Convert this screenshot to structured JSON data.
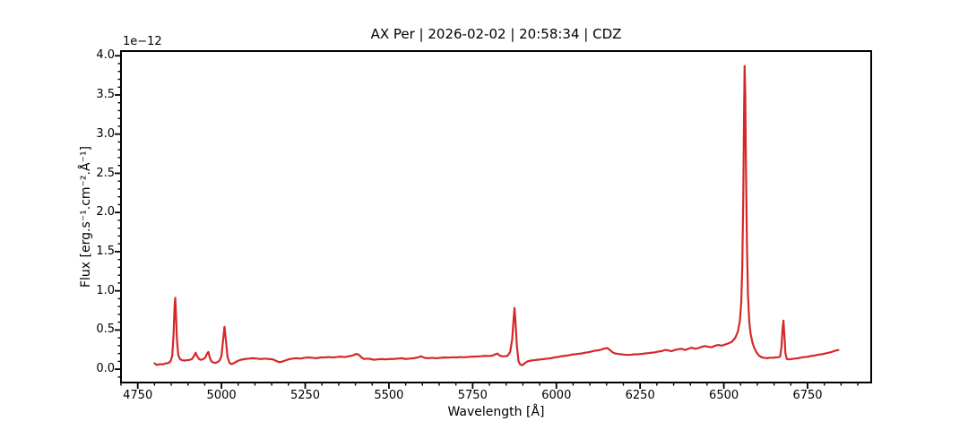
{
  "chart_data": {
    "type": "line",
    "title": "AX Per | 2026-02-02 | 20:58:34 | CDZ",
    "xlabel": "Wavelength [Å]",
    "ylabel": "Flux [erg.s⁻¹.cm⁻².Å⁻¹]",
    "y_offset_label": "1e−12",
    "flux_unit_scale": "1e-12",
    "line_color": "#d62728",
    "axes_color": "#000000",
    "background_color": "#ffffff",
    "grid": false,
    "legend": false,
    "xlim": [
      4700,
      6940
    ],
    "ylim": [
      -0.17,
      4.06
    ],
    "x_major_ticks": [
      4750,
      5000,
      5250,
      5500,
      5750,
      6000,
      6250,
      6500,
      6750
    ],
    "x_tick_labels": [
      "4750",
      "5000",
      "5250",
      "5500",
      "5750",
      "6000",
      "6250",
      "6500",
      "6750"
    ],
    "x_minor_step": 50,
    "y_major_ticks": [
      0.0,
      0.5,
      1.0,
      1.5,
      2.0,
      2.5,
      3.0,
      3.5,
      4.0
    ],
    "y_tick_labels": [
      "0.0",
      "0.5",
      "1.0",
      "1.5",
      "2.0",
      "2.5",
      "3.0",
      "3.5",
      "4.0"
    ],
    "y_minor_step": 0.1,
    "emission_peaks": [
      {
        "wavelength": 4862,
        "flux": 0.91
      },
      {
        "wavelength": 4923,
        "flux": 0.21
      },
      {
        "wavelength": 4961,
        "flux": 0.22
      },
      {
        "wavelength": 5009,
        "flux": 0.54
      },
      {
        "wavelength": 5875,
        "flux": 0.78
      },
      {
        "wavelength": 6562,
        "flux": 3.87
      },
      {
        "wavelength": 6678,
        "flux": 0.62
      }
    ],
    "series": [
      {
        "name": "spectrum",
        "x": [
          4800,
          4806,
          4812,
          4818,
          4824,
          4830,
          4836,
          4842,
          4848,
          4853,
          4857,
          4860,
          4862,
          4864,
          4867,
          4871,
          4876,
          4882,
          4890,
          4898,
          4906,
          4912,
          4918,
          4923,
          4928,
          4934,
          4940,
          4946,
          4952,
          4957,
          4961,
          4965,
          4970,
          4976,
          4982,
          4988,
          4994,
          5000,
          5005,
          5009,
          5013,
          5018,
          5024,
          5030,
          5038,
          5048,
          5058,
          5070,
          5082,
          5094,
          5106,
          5118,
          5130,
          5142,
          5154,
          5164,
          5172,
          5180,
          5190,
          5200,
          5212,
          5224,
          5236,
          5248,
          5260,
          5272,
          5284,
          5296,
          5308,
          5320,
          5332,
          5344,
          5356,
          5368,
          5380,
          5392,
          5402,
          5410,
          5418,
          5426,
          5436,
          5446,
          5456,
          5466,
          5478,
          5490,
          5502,
          5514,
          5526,
          5538,
          5550,
          5562,
          5574,
          5586,
          5597,
          5606,
          5618,
          5630,
          5642,
          5654,
          5666,
          5678,
          5690,
          5702,
          5714,
          5726,
          5738,
          5750,
          5762,
          5774,
          5786,
          5798,
          5808,
          5818,
          5824,
          5830,
          5838,
          5846,
          5854,
          5862,
          5868,
          5872,
          5875,
          5878,
          5882,
          5887,
          5892,
          5898,
          5905,
          5914,
          5924,
          5934,
          5944,
          5954,
          5964,
          5974,
          5984,
          5994,
          6004,
          6014,
          6024,
          6034,
          6044,
          6054,
          6064,
          6074,
          6084,
          6094,
          6104,
          6114,
          6124,
          6134,
          6144,
          6152,
          6160,
          6168,
          6176,
          6184,
          6194,
          6204,
          6214,
          6224,
          6234,
          6244,
          6254,
          6264,
          6274,
          6284,
          6294,
          6304,
          6314,
          6324,
          6334,
          6344,
          6354,
          6364,
          6374,
          6384,
          6394,
          6404,
          6414,
          6424,
          6434,
          6444,
          6454,
          6464,
          6474,
          6484,
          6494,
          6504,
          6514,
          6524,
          6534,
          6542,
          6548,
          6552,
          6555,
          6558,
          6560,
          6562,
          6564,
          6566,
          6569,
          6572,
          6576,
          6580,
          6586,
          6592,
          6598,
          6606,
          6614,
          6622,
          6630,
          6638,
          6646,
          6654,
          6662,
          6668,
          6672,
          6675,
          6678,
          6681,
          6684,
          6688,
          6694,
          6702,
          6712,
          6722,
          6732,
          6742,
          6752,
          6762,
          6772,
          6782,
          6792,
          6802,
          6812,
          6822,
          6832,
          6842
        ],
        "y": [
          0.075,
          0.055,
          0.06,
          0.065,
          0.06,
          0.07,
          0.075,
          0.08,
          0.1,
          0.17,
          0.45,
          0.8,
          0.91,
          0.72,
          0.38,
          0.18,
          0.13,
          0.115,
          0.11,
          0.115,
          0.12,
          0.13,
          0.17,
          0.21,
          0.16,
          0.125,
          0.12,
          0.13,
          0.15,
          0.2,
          0.22,
          0.15,
          0.1,
          0.085,
          0.08,
          0.09,
          0.11,
          0.17,
          0.38,
          0.54,
          0.38,
          0.16,
          0.08,
          0.065,
          0.08,
          0.105,
          0.12,
          0.13,
          0.135,
          0.14,
          0.135,
          0.13,
          0.135,
          0.13,
          0.125,
          0.105,
          0.09,
          0.095,
          0.11,
          0.125,
          0.135,
          0.14,
          0.135,
          0.145,
          0.15,
          0.145,
          0.14,
          0.15,
          0.15,
          0.155,
          0.15,
          0.155,
          0.16,
          0.155,
          0.165,
          0.175,
          0.195,
          0.185,
          0.15,
          0.13,
          0.135,
          0.13,
          0.12,
          0.125,
          0.13,
          0.125,
          0.13,
          0.13,
          0.135,
          0.14,
          0.13,
          0.135,
          0.14,
          0.15,
          0.165,
          0.145,
          0.14,
          0.145,
          0.14,
          0.145,
          0.15,
          0.148,
          0.152,
          0.15,
          0.155,
          0.152,
          0.158,
          0.16,
          0.162,
          0.165,
          0.17,
          0.168,
          0.172,
          0.19,
          0.2,
          0.175,
          0.165,
          0.165,
          0.17,
          0.22,
          0.38,
          0.62,
          0.78,
          0.6,
          0.3,
          0.1,
          0.06,
          0.05,
          0.075,
          0.1,
          0.11,
          0.115,
          0.12,
          0.125,
          0.13,
          0.135,
          0.14,
          0.15,
          0.155,
          0.165,
          0.17,
          0.175,
          0.185,
          0.19,
          0.195,
          0.2,
          0.21,
          0.215,
          0.225,
          0.235,
          0.24,
          0.25,
          0.265,
          0.27,
          0.245,
          0.215,
          0.2,
          0.195,
          0.19,
          0.185,
          0.182,
          0.185,
          0.19,
          0.19,
          0.195,
          0.2,
          0.205,
          0.21,
          0.215,
          0.225,
          0.23,
          0.245,
          0.24,
          0.23,
          0.245,
          0.255,
          0.26,
          0.245,
          0.26,
          0.275,
          0.26,
          0.27,
          0.285,
          0.295,
          0.285,
          0.28,
          0.3,
          0.31,
          0.3,
          0.315,
          0.33,
          0.35,
          0.4,
          0.48,
          0.62,
          0.85,
          1.3,
          2.2,
          3.1,
          3.87,
          3.5,
          2.6,
          1.6,
          0.95,
          0.6,
          0.45,
          0.33,
          0.26,
          0.21,
          0.17,
          0.15,
          0.145,
          0.14,
          0.148,
          0.145,
          0.15,
          0.152,
          0.16,
          0.28,
          0.5,
          0.62,
          0.42,
          0.2,
          0.13,
          0.125,
          0.13,
          0.135,
          0.14,
          0.15,
          0.155,
          0.16,
          0.17,
          0.175,
          0.185,
          0.19,
          0.2,
          0.21,
          0.22,
          0.235,
          0.245
        ]
      }
    ]
  }
}
